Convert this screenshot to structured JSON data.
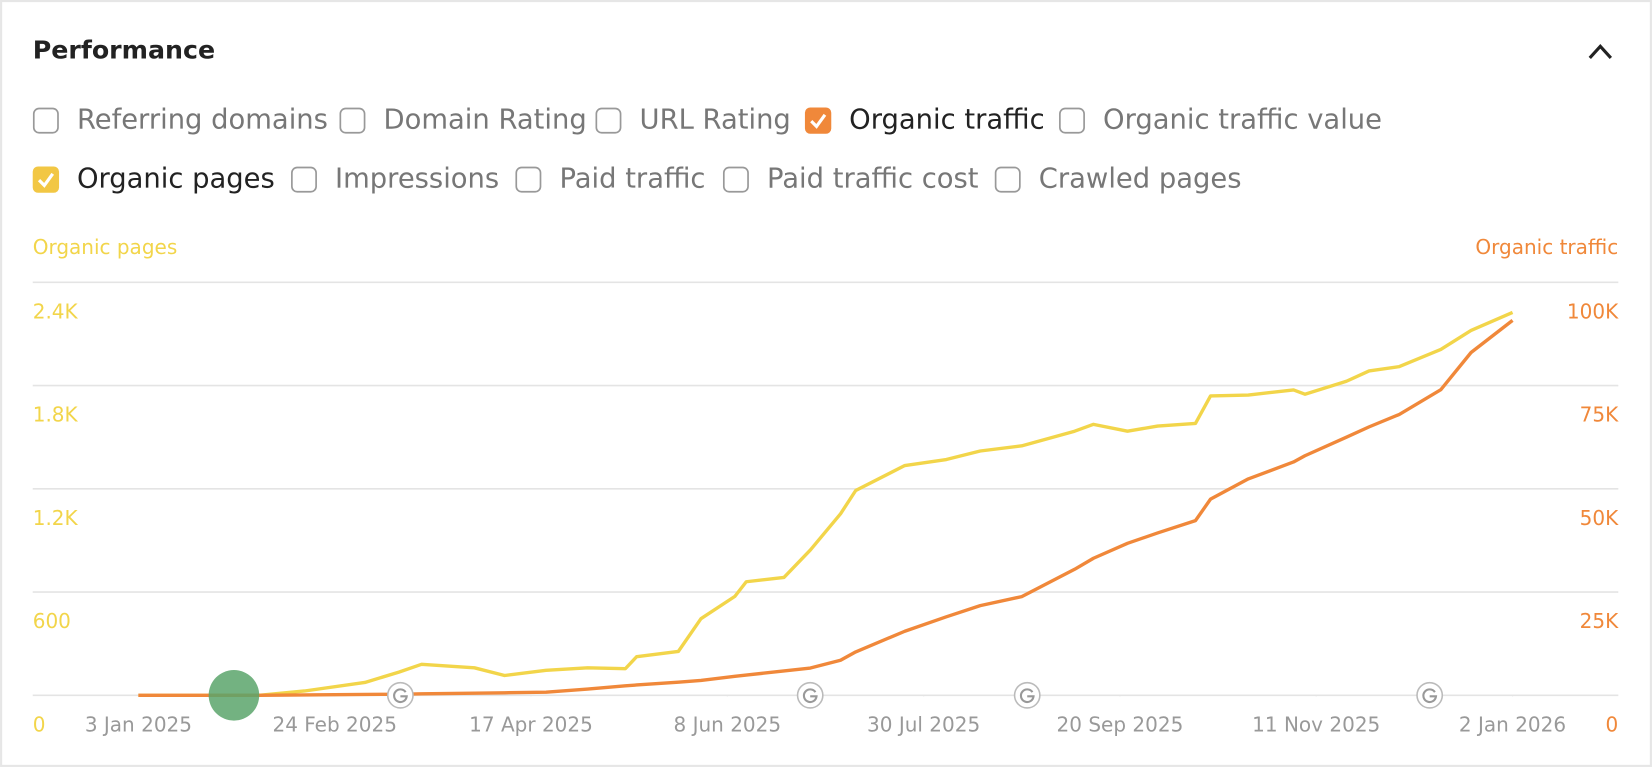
{
  "header": {
    "title": "Performance"
  },
  "metrics": [
    {
      "label": "Referring domains",
      "checked": false
    },
    {
      "label": "Domain Rating",
      "checked": false
    },
    {
      "label": "URL Rating",
      "checked": false
    },
    {
      "label": "Organic traffic",
      "checked": true,
      "color": "#f0883a"
    },
    {
      "label": "Organic traffic value",
      "checked": false
    },
    {
      "label": "Organic pages",
      "checked": true,
      "color": "#f2c744"
    },
    {
      "label": "Impressions",
      "checked": false
    },
    {
      "label": "Paid traffic",
      "checked": false
    },
    {
      "label": "Paid traffic cost",
      "checked": false
    },
    {
      "label": "Crawled pages",
      "checked": false
    }
  ],
  "chart_data": {
    "type": "line",
    "grid": true,
    "x": [
      "2025-01-03",
      "2025-02-04",
      "2025-02-16",
      "2025-03-04",
      "2025-03-13",
      "2025-03-19",
      "2025-04-02",
      "2025-04-10",
      "2025-04-21",
      "2025-05-02",
      "2025-05-12",
      "2025-05-15",
      "2025-05-26",
      "2025-06-01",
      "2025-06-10",
      "2025-06-13",
      "2025-06-23",
      "2025-06-30",
      "2025-07-08",
      "2025-07-12",
      "2025-07-25",
      "2025-08-05",
      "2025-08-14",
      "2025-08-25",
      "2025-09-08",
      "2025-09-13",
      "2025-09-22",
      "2025-09-30",
      "2025-10-10",
      "2025-10-14",
      "2025-10-24",
      "2025-11-05",
      "2025-11-08",
      "2025-11-19",
      "2025-11-25",
      "2025-12-03",
      "2025-12-14",
      "2025-12-22",
      "2026-01-02"
    ],
    "series": [
      {
        "name": "Organic pages",
        "color": "#f2d54a",
        "axis": "y",
        "values": [
          0,
          0,
          25,
          75,
          135,
          180,
          160,
          115,
          145,
          160,
          155,
          225,
          255,
          445,
          575,
          660,
          685,
          845,
          1055,
          1190,
          1335,
          1370,
          1420,
          1450,
          1535,
          1575,
          1535,
          1565,
          1580,
          1740,
          1745,
          1775,
          1750,
          1825,
          1885,
          1910,
          2010,
          2120,
          2225
        ]
      },
      {
        "name": "Organic traffic",
        "color": "#f0883a",
        "axis": "y2",
        "values": [
          0,
          0,
          100,
          200,
          255,
          350,
          510,
          600,
          765,
          1500,
          2300,
          2500,
          3200,
          3600,
          4590,
          4900,
          5900,
          6600,
          8500,
          10500,
          15500,
          19000,
          21700,
          23900,
          30500,
          33200,
          36800,
          39300,
          42300,
          47500,
          52400,
          56500,
          58000,
          62500,
          65000,
          68000,
          74000,
          83000,
          90800
        ]
      }
    ],
    "xlim": [
      "2024-12-06",
      "2026-01-30"
    ],
    "xticks": [
      {
        "value": "2025-01-03",
        "label": "3 Jan 2025"
      },
      {
        "value": "2025-02-24",
        "label": "24 Feb 2025"
      },
      {
        "value": "2025-04-17",
        "label": "17 Apr 2025"
      },
      {
        "value": "2025-06-08",
        "label": "8 Jun 2025"
      },
      {
        "value": "2025-07-30",
        "label": "30 Jul 2025"
      },
      {
        "value": "2025-09-20",
        "label": "20 Sep 2025"
      },
      {
        "value": "2025-11-11",
        "label": "11 Nov 2025"
      },
      {
        "value": "2026-01-02",
        "label": "2 Jan 2026"
      }
    ],
    "ylim": [
      0,
      2400
    ],
    "yticks": [
      0,
      600,
      {
        "value": 1200,
        "label": "1.2K"
      },
      {
        "value": 1800,
        "label": "1.8K"
      },
      {
        "value": 2400,
        "label": "2.4K"
      }
    ],
    "y2lim": [
      0,
      100000
    ],
    "y2ticks": [
      0,
      {
        "value": 25000,
        "label": "25K"
      },
      {
        "value": 50000,
        "label": "50K"
      },
      {
        "value": 75000,
        "label": "75K"
      },
      {
        "value": 100000,
        "label": "100K"
      }
    ]
  }
}
